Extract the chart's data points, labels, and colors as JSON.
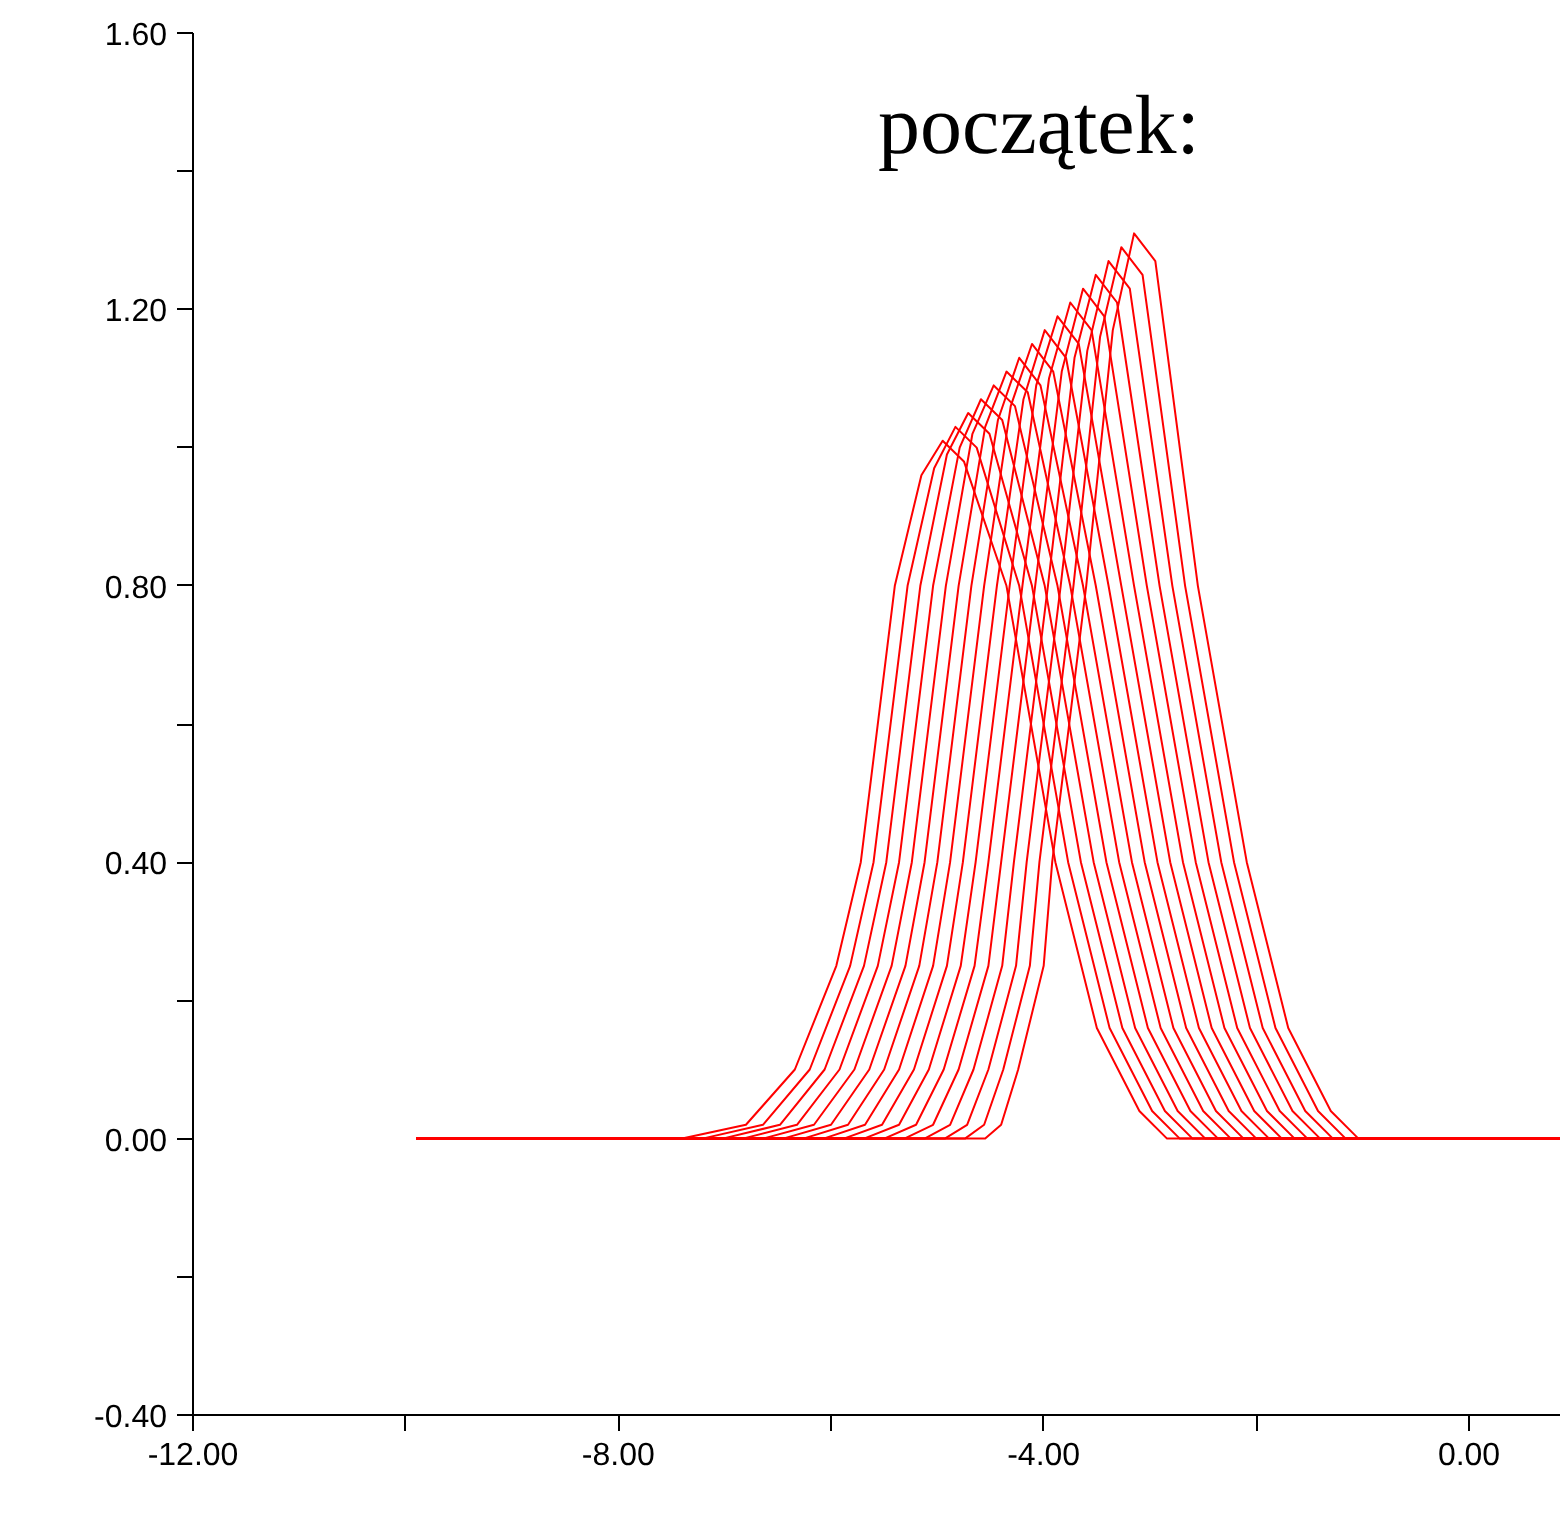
{
  "chart_data": {
    "type": "line",
    "title": "początek:",
    "xlim": [
      -12,
      0.865
    ],
    "ylim": [
      -0.4,
      1.6
    ],
    "xticks": [
      {
        "value": -12,
        "label": "-12.00"
      },
      {
        "value": -10,
        "label": null
      },
      {
        "value": -8,
        "label": "-8.00"
      },
      {
        "value": -6,
        "label": null
      },
      {
        "value": -4,
        "label": "-4.00"
      },
      {
        "value": -2,
        "label": null
      },
      {
        "value": 0,
        "label": "0.00"
      }
    ],
    "yticks": [
      {
        "value": -0.4,
        "label": "-0.40"
      },
      {
        "value": -0.2,
        "label": null
      },
      {
        "value": 0,
        "label": "0.00"
      },
      {
        "value": 0.2,
        "label": null
      },
      {
        "value": 0.4,
        "label": "0.40"
      },
      {
        "value": 0.6,
        "label": null
      },
      {
        "value": 0.8,
        "label": "0.80"
      },
      {
        "value": 1.0,
        "label": null
      },
      {
        "value": 1.2,
        "label": "1.20"
      },
      {
        "value": 1.4,
        "label": null
      },
      {
        "value": 1.6,
        "label": "1.60"
      }
    ],
    "grid": false,
    "marker": "none",
    "line_style": "solid",
    "series": [
      {
        "color": "#ff0000",
        "x": [
          -9.9,
          -7.4,
          -6.8,
          -6.34,
          -5.95,
          -5.72,
          -5.4,
          -5.15,
          -4.95,
          -4.75,
          -4.35,
          -3.89,
          -3.5,
          -3.1,
          -2.84,
          0.865
        ],
        "values": [
          0,
          0,
          0.02,
          0.1,
          0.25,
          0.4,
          0.8,
          0.96,
          1.01,
          0.98,
          0.8,
          0.4,
          0.16,
          0.04,
          0,
          0
        ]
      },
      {
        "color": "#ff0000",
        "x": [
          -9.9,
          -7.21,
          -6.64,
          -6.2,
          -5.82,
          -5.6,
          -5.28,
          -5.03,
          -4.83,
          -4.63,
          -4.23,
          -3.77,
          -3.38,
          -2.98,
          -2.72,
          0.865
        ],
        "values": [
          0,
          0,
          0.02,
          0.1,
          0.25,
          0.4,
          0.8,
          0.97,
          1.03,
          1.0,
          0.8,
          0.4,
          0.16,
          0.04,
          0,
          0
        ]
      },
      {
        "color": "#ff0000",
        "x": [
          -9.9,
          -7.02,
          -6.48,
          -6.06,
          -5.69,
          -5.48,
          -5.16,
          -4.91,
          -4.71,
          -4.51,
          -4.11,
          -3.65,
          -3.26,
          -2.86,
          -2.6,
          0.865
        ],
        "values": [
          0,
          0,
          0.02,
          0.1,
          0.25,
          0.4,
          0.8,
          0.99,
          1.05,
          1.02,
          0.8,
          0.4,
          0.16,
          0.04,
          0,
          0
        ]
      },
      {
        "color": "#ff0000",
        "x": [
          -9.9,
          -6.83,
          -6.32,
          -5.92,
          -5.56,
          -5.36,
          -5.04,
          -4.79,
          -4.59,
          -4.39,
          -3.99,
          -3.53,
          -3.14,
          -2.74,
          -2.48,
          0.865
        ],
        "values": [
          0,
          0,
          0.02,
          0.1,
          0.25,
          0.4,
          0.8,
          1.0,
          1.07,
          1.04,
          0.8,
          0.4,
          0.16,
          0.04,
          0,
          0
        ]
      },
      {
        "color": "#ff0000",
        "x": [
          -9.9,
          -6.64,
          -6.16,
          -5.78,
          -5.43,
          -5.24,
          -4.92,
          -4.67,
          -4.47,
          -4.27,
          -3.87,
          -3.41,
          -3.02,
          -2.62,
          -2.36,
          0.865
        ],
        "values": [
          0,
          0,
          0.02,
          0.1,
          0.25,
          0.4,
          0.8,
          1.02,
          1.09,
          1.06,
          0.8,
          0.4,
          0.16,
          0.04,
          0,
          0
        ]
      },
      {
        "color": "#ff0000",
        "x": [
          -9.9,
          -6.45,
          -6.0,
          -5.64,
          -5.3,
          -5.12,
          -4.8,
          -4.55,
          -4.35,
          -4.15,
          -3.75,
          -3.29,
          -2.9,
          -2.5,
          -2.24,
          0.865
        ],
        "values": [
          0,
          0,
          0.02,
          0.1,
          0.25,
          0.4,
          0.8,
          1.03,
          1.11,
          1.08,
          0.8,
          0.4,
          0.16,
          0.04,
          0,
          0
        ]
      },
      {
        "color": "#ff0000",
        "x": [
          -9.9,
          -6.26,
          -5.84,
          -5.5,
          -5.17,
          -5.0,
          -4.68,
          -4.43,
          -4.23,
          -4.03,
          -3.63,
          -3.17,
          -2.78,
          -2.38,
          -2.12,
          0.865
        ],
        "values": [
          0,
          0,
          0.02,
          0.1,
          0.25,
          0.4,
          0.8,
          1.04,
          1.13,
          1.09,
          0.8,
          0.4,
          0.16,
          0.04,
          0,
          0
        ]
      },
      {
        "color": "#ff0000",
        "x": [
          -9.9,
          -6.07,
          -5.68,
          -5.36,
          -5.04,
          -4.88,
          -4.56,
          -4.31,
          -4.11,
          -3.91,
          -3.51,
          -3.05,
          -2.66,
          -2.26,
          -2.0,
          0.865
        ],
        "values": [
          0,
          0,
          0.02,
          0.1,
          0.25,
          0.4,
          0.8,
          1.06,
          1.15,
          1.11,
          0.8,
          0.4,
          0.16,
          0.04,
          0,
          0
        ]
      },
      {
        "color": "#ff0000",
        "x": [
          -9.9,
          -5.88,
          -5.52,
          -5.22,
          -4.91,
          -4.76,
          -4.44,
          -4.19,
          -3.99,
          -3.79,
          -3.39,
          -2.93,
          -2.54,
          -2.14,
          -1.88,
          0.865
        ],
        "values": [
          0,
          0,
          0.02,
          0.1,
          0.25,
          0.4,
          0.8,
          1.07,
          1.17,
          1.13,
          0.8,
          0.4,
          0.16,
          0.04,
          0,
          0
        ]
      },
      {
        "color": "#ff0000",
        "x": [
          -9.9,
          -5.69,
          -5.36,
          -5.08,
          -4.78,
          -4.64,
          -4.32,
          -4.07,
          -3.87,
          -3.67,
          -3.27,
          -2.81,
          -2.42,
          -2.02,
          -1.76,
          0.865
        ],
        "values": [
          0,
          0,
          0.02,
          0.1,
          0.25,
          0.4,
          0.8,
          1.09,
          1.19,
          1.15,
          0.8,
          0.4,
          0.16,
          0.04,
          0,
          0
        ]
      },
      {
        "color": "#ff0000",
        "x": [
          -9.9,
          -5.5,
          -5.2,
          -4.94,
          -4.65,
          -4.52,
          -4.2,
          -3.95,
          -3.75,
          -3.55,
          -3.15,
          -2.69,
          -2.3,
          -1.9,
          -1.64,
          0.865
        ],
        "values": [
          0,
          0,
          0.02,
          0.1,
          0.25,
          0.4,
          0.8,
          1.1,
          1.21,
          1.17,
          0.8,
          0.4,
          0.16,
          0.04,
          0,
          0
        ]
      },
      {
        "color": "#ff0000",
        "x": [
          -9.9,
          -5.31,
          -5.04,
          -4.8,
          -4.52,
          -4.4,
          -4.08,
          -3.83,
          -3.63,
          -3.43,
          -3.03,
          -2.57,
          -2.18,
          -1.78,
          -1.52,
          0.865
        ],
        "values": [
          0,
          0,
          0.02,
          0.1,
          0.25,
          0.4,
          0.8,
          1.11,
          1.23,
          1.19,
          0.8,
          0.4,
          0.16,
          0.04,
          0,
          0
        ]
      },
      {
        "color": "#ff0000",
        "x": [
          -9.9,
          -5.12,
          -4.88,
          -4.66,
          -4.39,
          -4.28,
          -3.96,
          -3.71,
          -3.51,
          -3.31,
          -2.91,
          -2.45,
          -2.06,
          -1.66,
          -1.4,
          0.865
        ],
        "values": [
          0,
          0,
          0.02,
          0.1,
          0.25,
          0.4,
          0.8,
          1.13,
          1.25,
          1.21,
          0.8,
          0.4,
          0.16,
          0.04,
          0,
          0
        ]
      },
      {
        "color": "#ff0000",
        "x": [
          -9.9,
          -4.93,
          -4.72,
          -4.52,
          -4.26,
          -4.16,
          -3.84,
          -3.59,
          -3.39,
          -3.19,
          -2.79,
          -2.33,
          -1.94,
          -1.54,
          -1.28,
          0.865
        ],
        "values": [
          0,
          0,
          0.02,
          0.1,
          0.25,
          0.4,
          0.8,
          1.14,
          1.27,
          1.23,
          0.8,
          0.4,
          0.16,
          0.04,
          0,
          0
        ]
      },
      {
        "color": "#ff0000",
        "x": [
          -9.9,
          -4.74,
          -4.56,
          -4.38,
          -4.13,
          -4.04,
          -3.72,
          -3.47,
          -3.27,
          -3.07,
          -2.67,
          -2.21,
          -1.82,
          -1.42,
          -1.16,
          0.865
        ],
        "values": [
          0,
          0,
          0.02,
          0.1,
          0.25,
          0.4,
          0.8,
          1.16,
          1.29,
          1.25,
          0.8,
          0.4,
          0.16,
          0.04,
          0,
          0
        ]
      },
      {
        "color": "#ff0000",
        "x": [
          -9.9,
          -4.55,
          -4.4,
          -4.24,
          -4.0,
          -3.92,
          -3.6,
          -3.35,
          -3.15,
          -2.95,
          -2.55,
          -2.09,
          -1.7,
          -1.3,
          -1.04,
          0.865
        ],
        "values": [
          0,
          0,
          0.02,
          0.1,
          0.25,
          0.4,
          0.8,
          1.17,
          1.31,
          1.27,
          0.8,
          0.4,
          0.16,
          0.04,
          0,
          0
        ]
      }
    ]
  }
}
